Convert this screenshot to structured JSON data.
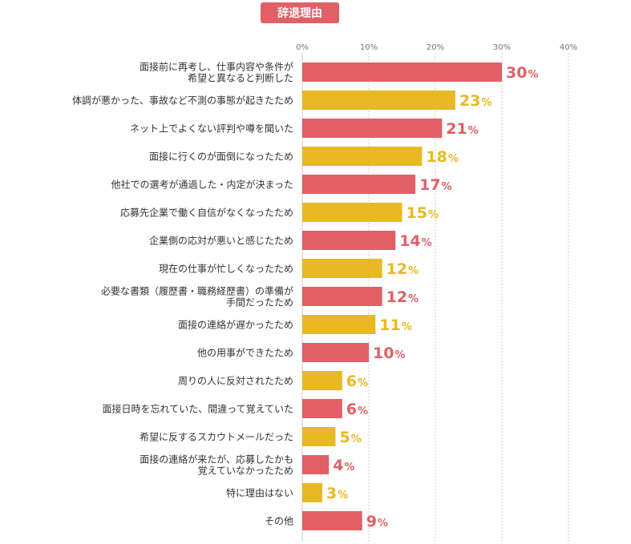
{
  "chart_data": {
    "type": "bar",
    "orientation": "horizontal",
    "title": "辞退理由",
    "unit": "%",
    "xlim": [
      0,
      40
    ],
    "ticks": [
      0,
      10,
      20,
      30,
      40
    ],
    "tick_labels": [
      "0%",
      "10%",
      "20%",
      "30%",
      "40%"
    ],
    "grid": true,
    "categories": [
      [
        "面接前に再考し、仕事内容や条件が",
        "希望と異なると判断した"
      ],
      [
        "体調が悪かった、事故など不測の事態が起きたため"
      ],
      [
        "ネット上でよくない評判や噂を聞いた"
      ],
      [
        "面接に行くのが面倒になったため"
      ],
      [
        "他社での選考が通過した・内定が決まった"
      ],
      [
        "応募先企業で働く自信がなくなったため"
      ],
      [
        "企業側の応対が悪いと感じたため"
      ],
      [
        "現在の仕事が忙しくなったため"
      ],
      [
        "必要な書類（履歴書・職務経歴書）の準備が",
        "手間だったため"
      ],
      [
        "面接の連絡が遅かったため"
      ],
      [
        "他の用事ができたため"
      ],
      [
        "周りの人に反対されたため"
      ],
      [
        "面接日時を忘れていた、間違って覚えていた"
      ],
      [
        "希望に反するスカウトメールだった"
      ],
      [
        "面接の連絡が来たが、応募したかも",
        "覚えていなかったため"
      ],
      [
        "特に理由はない"
      ],
      [
        "その他"
      ]
    ],
    "values": [
      30,
      23,
      21,
      18,
      17,
      15,
      14,
      12,
      12,
      11,
      10,
      6,
      6,
      5,
      4,
      3,
      9
    ],
    "colors": {
      "red": "#e06066",
      "yellow": "#e8b825",
      "title_bg": "#e06066",
      "grid": "#cccccc",
      "axis_text": "#777777",
      "label_text": "#333333"
    }
  }
}
